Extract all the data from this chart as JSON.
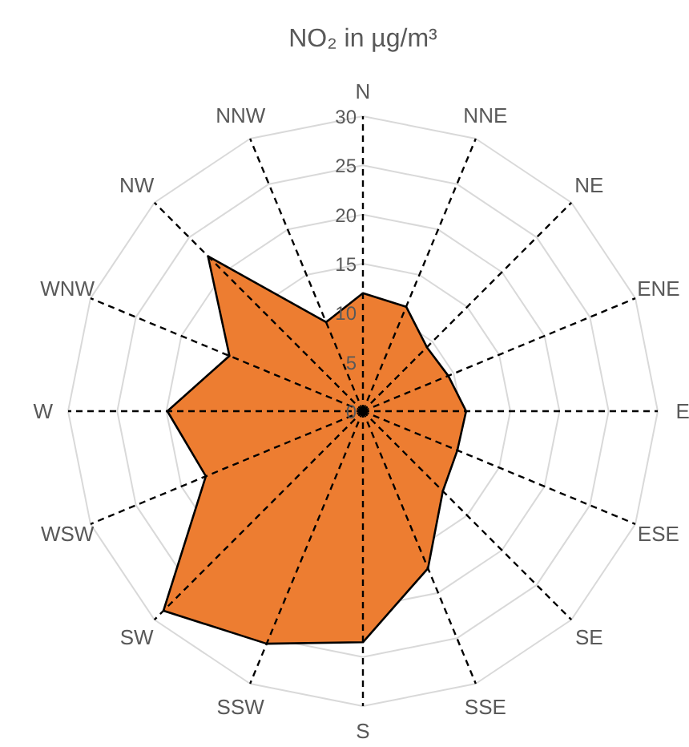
{
  "chart_data": {
    "type": "radar",
    "title": "NO₂ in µg/m³",
    "categories": [
      "N",
      "NNE",
      "NE",
      "ENE",
      "E",
      "ESE",
      "SE",
      "SSE",
      "S",
      "SSW",
      "SW",
      "WSW",
      "W",
      "WNW",
      "NW",
      "NNW"
    ],
    "series": [
      {
        "color": "#ed7d31",
        "values": [
          12.0,
          11.5,
          9.2,
          9.4,
          10.5,
          10.4,
          11.5,
          17.3,
          23.5,
          25.6,
          28.7,
          17.3,
          19.9,
          14.7,
          22.3,
          9.8
        ]
      }
    ],
    "ylim": [
      0,
      30
    ],
    "yticks": [
      0,
      5,
      10,
      15,
      20,
      25,
      30
    ],
    "grid": true
  }
}
